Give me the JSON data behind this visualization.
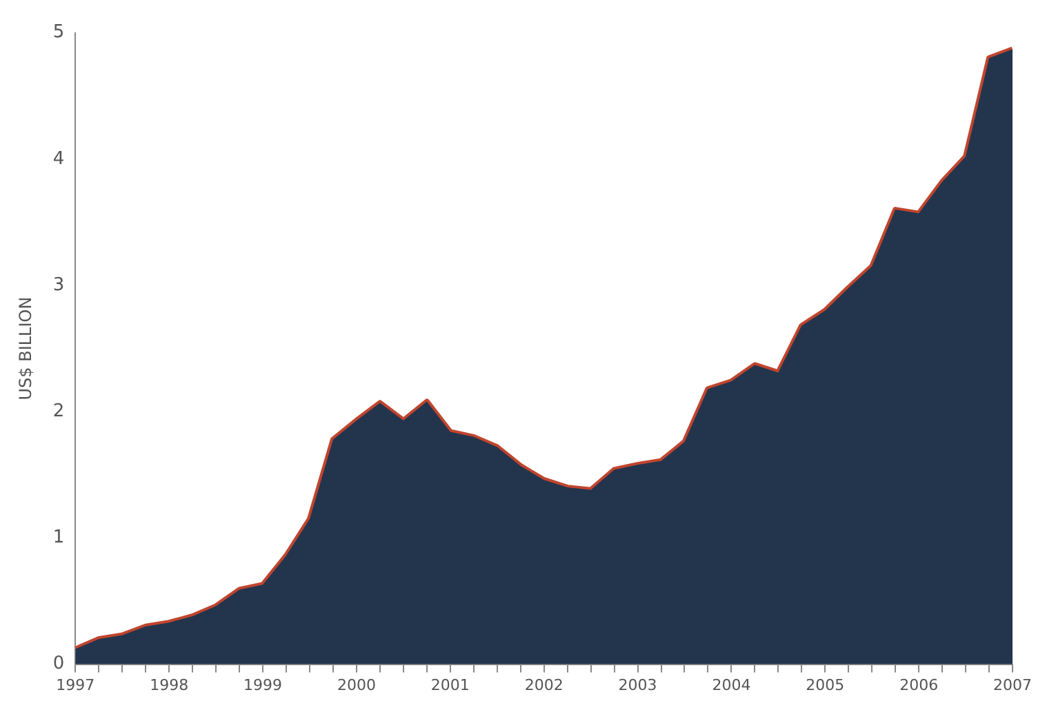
{
  "chart_data": {
    "type": "area",
    "ylabel": "US$ BILLION",
    "x": [
      1997,
      1997.25,
      1997.5,
      1997.75,
      1998,
      1998.25,
      1998.5,
      1998.75,
      1999,
      1999.25,
      1999.5,
      1999.75,
      2000,
      2000.25,
      2000.5,
      2000.75,
      2001,
      2001.25,
      2001.5,
      2001.75,
      2002,
      2002.25,
      2002.5,
      2002.75,
      2003,
      2003.25,
      2003.5,
      2003.75,
      2004,
      2004.25,
      2004.5,
      2004.75,
      2005,
      2005.25,
      2005.5,
      2005.75,
      2006,
      2006.25,
      2006.5,
      2006.75,
      2007
    ],
    "series": [
      {
        "color": "#22354d",
        "values": [
          0.12,
          0.2,
          0.23,
          0.3,
          0.33,
          0.38,
          0.46,
          0.59,
          0.63,
          0.86,
          1.15,
          1.78,
          1.93,
          2.07,
          1.93,
          2.08,
          1.84,
          1.8,
          1.72,
          1.57,
          1.46,
          1.4,
          1.38,
          1.54,
          1.58,
          1.61,
          1.76,
          2.18,
          2.24,
          2.37,
          2.31,
          2.68,
          2.8,
          2.98,
          3.15,
          3.6,
          3.57,
          3.82,
          4.02,
          4.8,
          4.87
        ]
      },
      {
        "type": "line",
        "color": "#c0452e",
        "values": [
          0.12,
          0.2,
          0.23,
          0.3,
          0.33,
          0.38,
          0.46,
          0.59,
          0.63,
          0.86,
          1.15,
          1.78,
          1.93,
          2.07,
          1.93,
          2.08,
          1.84,
          1.8,
          1.72,
          1.57,
          1.46,
          1.4,
          1.38,
          1.54,
          1.58,
          1.61,
          1.76,
          2.18,
          2.24,
          2.37,
          2.31,
          2.68,
          2.8,
          2.98,
          3.15,
          3.6,
          3.57,
          3.82,
          4.02,
          4.8,
          4.87
        ]
      }
    ],
    "xlim": [
      1997,
      2007
    ],
    "xticks": [
      1997,
      {
        "value": 1997.25,
        "label": null
      },
      {
        "value": 1997.5,
        "label": null
      },
      {
        "value": 1997.75,
        "label": null
      },
      1998,
      {
        "value": 1998.25,
        "label": null
      },
      {
        "value": 1998.5,
        "label": null
      },
      {
        "value": 1998.75,
        "label": null
      },
      1999,
      {
        "value": 1999.25,
        "label": null
      },
      {
        "value": 1999.5,
        "label": null
      },
      {
        "value": 1999.75,
        "label": null
      },
      2000,
      {
        "value": 2000.25,
        "label": null
      },
      {
        "value": 2000.5,
        "label": null
      },
      {
        "value": 2000.75,
        "label": null
      },
      2001,
      {
        "value": 2001.25,
        "label": null
      },
      {
        "value": 2001.5,
        "label": null
      },
      {
        "value": 2001.75,
        "label": null
      },
      2002,
      {
        "value": 2002.25,
        "label": null
      },
      {
        "value": 2002.5,
        "label": null
      },
      {
        "value": 2002.75,
        "label": null
      },
      2003,
      {
        "value": 2003.25,
        "label": null
      },
      {
        "value": 2003.5,
        "label": null
      },
      {
        "value": 2003.75,
        "label": null
      },
      2004,
      {
        "value": 2004.25,
        "label": null
      },
      {
        "value": 2004.5,
        "label": null
      },
      {
        "value": 2004.75,
        "label": null
      },
      2005,
      {
        "value": 2005.25,
        "label": null
      },
      {
        "value": 2005.5,
        "label": null
      },
      {
        "value": 2005.75,
        "label": null
      },
      2006,
      {
        "value": 2006.25,
        "label": null
      },
      {
        "value": 2006.5,
        "label": null
      },
      {
        "value": 2006.75,
        "label": null
      },
      2007
    ],
    "ylim": [
      0,
      5
    ],
    "yticks": [
      0,
      1,
      2,
      3,
      4,
      5
    ],
    "grid": false,
    "legend": false
  }
}
